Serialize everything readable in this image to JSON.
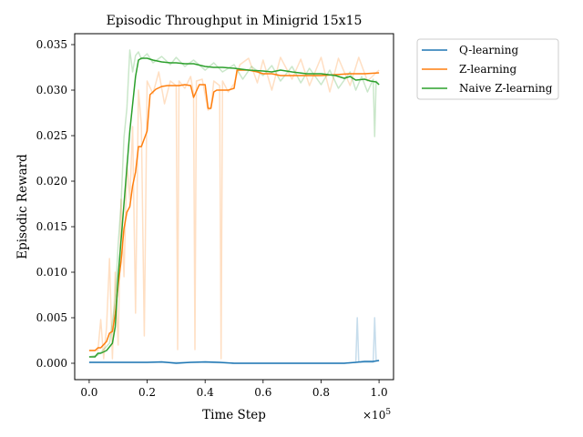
{
  "chart_data": {
    "type": "line",
    "title": "Episodic Throughput in Minigrid 15x15",
    "xlabel": "Time Step",
    "ylabel": "Episodic Reward",
    "x_multiplier_label": "×10^5",
    "x_multiplier_base": "×10",
    "x_multiplier_exp": "5",
    "xlim": [
      -0.05,
      1.05
    ],
    "ylim": [
      -0.0018,
      0.0362
    ],
    "x_ticks": [
      0.0,
      0.2,
      0.4,
      0.6,
      0.8,
      1.0
    ],
    "x_tick_labels": [
      "0.0",
      "0.2",
      "0.4",
      "0.6",
      "0.8",
      "1.0"
    ],
    "y_ticks": [
      0.0,
      0.005,
      0.01,
      0.015,
      0.02,
      0.025,
      0.03,
      0.035
    ],
    "y_tick_labels": [
      "0.000",
      "0.005",
      "0.010",
      "0.015",
      "0.020",
      "0.025",
      "0.030",
      "0.035"
    ],
    "grid": false,
    "legend_position": "outside-top-right",
    "series": [
      {
        "name": "Q-learning",
        "color": "#1f77b4",
        "x": [
          0.0,
          0.05,
          0.1,
          0.15,
          0.2,
          0.25,
          0.3,
          0.35,
          0.4,
          0.45,
          0.5,
          0.55,
          0.6,
          0.65,
          0.7,
          0.75,
          0.8,
          0.85,
          0.88,
          0.92,
          0.95,
          0.98,
          1.0
        ],
        "values": [
          0.0001,
          0.0001,
          0.0001,
          0.0001,
          0.0001,
          0.00015,
          0.0,
          0.0001,
          0.00015,
          0.0001,
          0.0,
          0.0,
          0.0,
          0.0,
          0.0,
          0.0,
          0.0,
          0.0,
          0.0,
          0.0001,
          0.0002,
          0.0002,
          0.0003
        ],
        "raw_x": [
          0.0,
          0.1,
          0.2,
          0.3,
          0.4,
          0.5,
          0.6,
          0.7,
          0.8,
          0.88,
          0.92,
          0.925,
          0.93,
          0.935,
          0.95,
          0.98,
          0.985,
          0.99,
          0.995,
          1.0
        ],
        "raw_values": [
          0.0001,
          0.0001,
          0.0001,
          0.0001,
          0.0001,
          0.0,
          0.0,
          0.0,
          0.0,
          0.0,
          0.0001,
          0.005,
          0.0002,
          0.0001,
          0.0001,
          0.0001,
          0.005,
          0.0003,
          0.0003,
          0.0003
        ]
      },
      {
        "name": "Z-learning",
        "color": "#ff7f0e",
        "x": [
          0.0,
          0.02,
          0.03,
          0.04,
          0.06,
          0.07,
          0.08,
          0.09,
          0.1,
          0.11,
          0.12,
          0.13,
          0.14,
          0.15,
          0.16,
          0.17,
          0.18,
          0.2,
          0.21,
          0.23,
          0.25,
          0.27,
          0.29,
          0.31,
          0.33,
          0.35,
          0.36,
          0.38,
          0.4,
          0.41,
          0.42,
          0.43,
          0.44,
          0.46,
          0.48,
          0.5,
          0.51,
          0.52,
          0.55,
          0.58,
          0.6,
          0.63,
          0.66,
          0.7,
          0.75,
          0.8,
          0.85,
          0.9,
          0.95,
          1.0
        ],
        "values": [
          0.0014,
          0.0014,
          0.0017,
          0.0017,
          0.0024,
          0.0033,
          0.0035,
          0.0054,
          0.0086,
          0.0112,
          0.0148,
          0.0166,
          0.0172,
          0.0195,
          0.021,
          0.0238,
          0.0238,
          0.0255,
          0.0295,
          0.0301,
          0.0304,
          0.0305,
          0.0305,
          0.0305,
          0.0306,
          0.0305,
          0.0292,
          0.0306,
          0.0306,
          0.028,
          0.028,
          0.0298,
          0.03,
          0.03,
          0.03,
          0.0302,
          0.0322,
          0.0322,
          0.0322,
          0.032,
          0.0318,
          0.0318,
          0.0316,
          0.0316,
          0.0316,
          0.0316,
          0.0317,
          0.0318,
          0.0318,
          0.0319
        ],
        "raw_x": [
          0.0,
          0.03,
          0.04,
          0.05,
          0.06,
          0.07,
          0.08,
          0.09,
          0.1,
          0.11,
          0.12,
          0.13,
          0.14,
          0.15,
          0.16,
          0.17,
          0.18,
          0.19,
          0.2,
          0.22,
          0.24,
          0.26,
          0.28,
          0.3,
          0.305,
          0.31,
          0.33,
          0.35,
          0.36,
          0.365,
          0.37,
          0.39,
          0.41,
          0.42,
          0.43,
          0.45,
          0.455,
          0.46,
          0.48,
          0.5,
          0.52,
          0.55,
          0.58,
          0.6,
          0.63,
          0.66,
          0.7,
          0.73,
          0.76,
          0.8,
          0.83,
          0.86,
          0.9,
          0.93,
          0.96,
          1.0
        ],
        "raw_values": [
          0.0014,
          0.0014,
          0.0048,
          0.0005,
          0.004,
          0.0115,
          0.0005,
          0.01,
          0.002,
          0.018,
          0.0095,
          0.022,
          0.018,
          0.026,
          0.0055,
          0.03,
          0.0262,
          0.003,
          0.031,
          0.0296,
          0.032,
          0.0285,
          0.031,
          0.0305,
          0.0015,
          0.031,
          0.0302,
          0.0315,
          0.0296,
          0.0015,
          0.031,
          0.0312,
          0.0278,
          0.028,
          0.031,
          0.0305,
          0.0005,
          0.031,
          0.0298,
          0.0307,
          0.0328,
          0.0335,
          0.0308,
          0.0333,
          0.03,
          0.0336,
          0.0312,
          0.0334,
          0.0305,
          0.0336,
          0.0298,
          0.0335,
          0.0305,
          0.0336,
          0.031,
          0.0322
        ]
      },
      {
        "name": "Naive Z-learning",
        "color": "#2ca02c",
        "x": [
          0.0,
          0.02,
          0.03,
          0.04,
          0.06,
          0.08,
          0.09,
          0.1,
          0.12,
          0.14,
          0.16,
          0.17,
          0.18,
          0.2,
          0.22,
          0.25,
          0.28,
          0.3,
          0.33,
          0.36,
          0.4,
          0.43,
          0.46,
          0.5,
          0.55,
          0.6,
          0.63,
          0.66,
          0.7,
          0.75,
          0.8,
          0.85,
          0.88,
          0.9,
          0.92,
          0.95,
          0.97,
          0.99,
          1.0
        ],
        "values": [
          0.0007,
          0.0007,
          0.0011,
          0.0011,
          0.0014,
          0.0022,
          0.004,
          0.0095,
          0.0175,
          0.0255,
          0.0315,
          0.0333,
          0.0335,
          0.0335,
          0.0333,
          0.0331,
          0.033,
          0.033,
          0.0329,
          0.0329,
          0.0326,
          0.0325,
          0.0325,
          0.0324,
          0.0322,
          0.0321,
          0.032,
          0.0322,
          0.032,
          0.0318,
          0.0318,
          0.0316,
          0.0313,
          0.0315,
          0.0311,
          0.0312,
          0.031,
          0.0309,
          0.0306
        ],
        "raw_x": [
          0.0,
          0.03,
          0.05,
          0.07,
          0.08,
          0.09,
          0.1,
          0.11,
          0.12,
          0.13,
          0.14,
          0.15,
          0.16,
          0.17,
          0.18,
          0.2,
          0.22,
          0.25,
          0.28,
          0.3,
          0.33,
          0.36,
          0.4,
          0.43,
          0.46,
          0.5,
          0.53,
          0.56,
          0.6,
          0.63,
          0.66,
          0.7,
          0.73,
          0.76,
          0.8,
          0.83,
          0.86,
          0.9,
          0.92,
          0.94,
          0.96,
          0.98,
          0.985,
          0.99,
          1.0
        ],
        "raw_values": [
          0.0007,
          0.0009,
          0.0015,
          0.0022,
          0.0045,
          0.007,
          0.013,
          0.0175,
          0.0248,
          0.028,
          0.0344,
          0.032,
          0.0338,
          0.0342,
          0.0334,
          0.034,
          0.033,
          0.0337,
          0.0328,
          0.0336,
          0.0326,
          0.0333,
          0.0322,
          0.033,
          0.032,
          0.0328,
          0.0312,
          0.0326,
          0.0316,
          0.0327,
          0.031,
          0.0326,
          0.0308,
          0.0324,
          0.0306,
          0.0322,
          0.0302,
          0.032,
          0.03,
          0.0315,
          0.0298,
          0.0312,
          0.0249,
          0.031,
          0.0306
        ]
      }
    ]
  }
}
